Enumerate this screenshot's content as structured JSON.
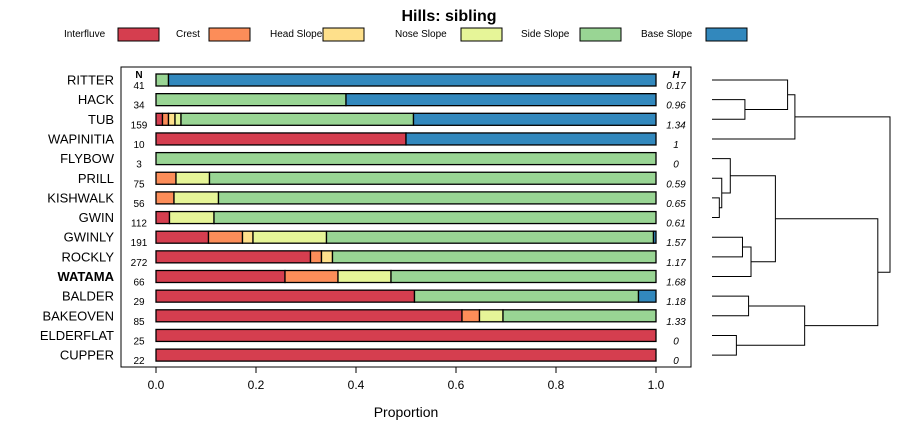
{
  "chart_data": {
    "type": "stacked-bar",
    "title": "Hills: sibling",
    "xlabel": "Proportion",
    "xlim": [
      0,
      1
    ],
    "xticks": [
      "0.0",
      "0.2",
      "0.4",
      "0.6",
      "0.8",
      "1.0"
    ],
    "n_header": "N",
    "h_header": "H",
    "legend": [
      {
        "name": "Interfluve",
        "color": "#d53e4f"
      },
      {
        "name": "Crest",
        "color": "#fc8d59"
      },
      {
        "name": "Head Slope",
        "color": "#fee08b"
      },
      {
        "name": "Nose Slope",
        "color": "#e6f598"
      },
      {
        "name": "Side Slope",
        "color": "#99d594"
      },
      {
        "name": "Base Slope",
        "color": "#3288bd"
      }
    ],
    "rows": [
      {
        "name": "RITTER",
        "n": "41",
        "h": "0.17",
        "values": [
          0,
          0,
          0,
          0,
          0.025,
          0.975
        ]
      },
      {
        "name": "HACK",
        "n": "34",
        "h": "0.96",
        "values": [
          0,
          0,
          0,
          0,
          0.38,
          0.62
        ]
      },
      {
        "name": "TUB",
        "n": "159",
        "h": "1.34",
        "values": [
          0.013,
          0.012,
          0.013,
          0.012,
          0.465,
          0.485
        ]
      },
      {
        "name": "WAPINITIA",
        "n": "10",
        "h": "1",
        "values": [
          0.5,
          0,
          0,
          0,
          0,
          0.5
        ]
      },
      {
        "name": "FLYBOW",
        "n": "3",
        "h": "0",
        "values": [
          0,
          0,
          0,
          0,
          1.0,
          0
        ]
      },
      {
        "name": "PRILL",
        "n": "75",
        "h": "0.59",
        "values": [
          0,
          0.04,
          0,
          0.067,
          0.893,
          0
        ]
      },
      {
        "name": "KISHWALK",
        "n": "56",
        "h": "0.65",
        "values": [
          0,
          0.036,
          0,
          0.089,
          0.875,
          0
        ]
      },
      {
        "name": "GWIN",
        "n": "112",
        "h": "0.61",
        "values": [
          0.027,
          0,
          0,
          0.089,
          0.884,
          0
        ]
      },
      {
        "name": "GWINLY",
        "n": "191",
        "h": "1.57",
        "values": [
          0.105,
          0.068,
          0.021,
          0.147,
          0.654,
          0.005
        ]
      },
      {
        "name": "ROCKLY",
        "n": "272",
        "h": "1.17",
        "values": [
          0.309,
          0.022,
          0.022,
          0,
          0.647,
          0
        ]
      },
      {
        "name": "WATAMA",
        "n": "66",
        "h": "1.68",
        "values": [
          0.258,
          0.106,
          0,
          0.106,
          0.53,
          0
        ],
        "bold": true
      },
      {
        "name": "BALDER",
        "n": "29",
        "h": "1.18",
        "values": [
          0.517,
          0,
          0,
          0,
          0.448,
          0.035
        ]
      },
      {
        "name": "BAKEOVEN",
        "n": "85",
        "h": "1.33",
        "values": [
          0.612,
          0.035,
          0,
          0.047,
          0.306,
          0
        ]
      },
      {
        "name": "ELDERFLAT",
        "n": "25",
        "h": "0",
        "values": [
          1.0,
          0,
          0,
          0,
          0,
          0
        ]
      },
      {
        "name": "CUPPER",
        "n": "22",
        "h": "0",
        "values": [
          1.0,
          0,
          0,
          0,
          0,
          0
        ]
      }
    ],
    "dendrogram": {
      "leaves": [
        "RITTER",
        "HACK",
        "TUB",
        "WAPINITIA",
        "FLYBOW",
        "PRILL",
        "KISHWALK",
        "GWIN",
        "GWINLY",
        "ROCKLY",
        "WATAMA",
        "BALDER",
        "BAKEOVEN",
        "ELDERFLAT",
        "CUPPER"
      ],
      "merges": [
        {
          "id": "m1",
          "a": "HACK",
          "b": "TUB",
          "h": 0.27
        },
        {
          "id": "m2",
          "a": "RITTER",
          "b": "m1",
          "h": 0.62
        },
        {
          "id": "m3",
          "a": "m2",
          "b": "WAPINITIA",
          "h": 0.68
        },
        {
          "id": "m4",
          "a": "KISHWALK",
          "b": "GWIN",
          "h": 0.06
        },
        {
          "id": "m5",
          "a": "PRILL",
          "b": "m4",
          "h": 0.08
        },
        {
          "id": "m6",
          "a": "FLYBOW",
          "b": "m5",
          "h": 0.15
        },
        {
          "id": "m7",
          "a": "GWINLY",
          "b": "ROCKLY",
          "h": 0.25
        },
        {
          "id": "m8",
          "a": "m7",
          "b": "WATAMA",
          "h": 0.32
        },
        {
          "id": "m9",
          "a": "m6",
          "b": "m8",
          "h": 0.52
        },
        {
          "id": "m10",
          "a": "ELDERFLAT",
          "b": "CUPPER",
          "h": 0.2
        },
        {
          "id": "m11",
          "a": "BALDER",
          "b": "BAKEOVEN",
          "h": 0.3
        },
        {
          "id": "m12",
          "a": "m11",
          "b": "m10",
          "h": 0.76
        },
        {
          "id": "m13",
          "a": "m9",
          "b": "m12",
          "h": 1.36
        },
        {
          "id": "m14",
          "a": "m3",
          "b": "m13",
          "h": 1.46
        }
      ]
    }
  }
}
